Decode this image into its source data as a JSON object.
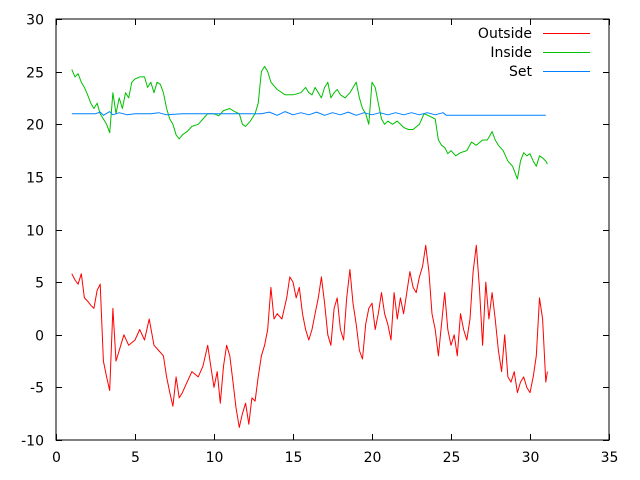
{
  "chart_data": {
    "type": "line",
    "title": "",
    "xlabel": "",
    "ylabel": "",
    "xlim": [
      0,
      35
    ],
    "ylim": [
      -10,
      30
    ],
    "x_ticks": [
      0,
      5,
      10,
      15,
      20,
      25,
      30,
      35
    ],
    "y_ticks": [
      -10,
      -5,
      0,
      5,
      10,
      15,
      20,
      25,
      30
    ],
    "grid": false,
    "legend_position": "top-right",
    "series": [
      {
        "name": "Outside",
        "color": "#ff0000",
        "points": [
          [
            1.0,
            5.8
          ],
          [
            1.2,
            5.2
          ],
          [
            1.4,
            4.8
          ],
          [
            1.6,
            5.8
          ],
          [
            1.8,
            3.5
          ],
          [
            2.0,
            3.2
          ],
          [
            2.2,
            2.8
          ],
          [
            2.4,
            2.5
          ],
          [
            2.6,
            4.2
          ],
          [
            2.8,
            4.8
          ],
          [
            3.0,
            -2.5
          ],
          [
            3.2,
            -4.0
          ],
          [
            3.4,
            -5.3
          ],
          [
            3.6,
            2.5
          ],
          [
            3.8,
            -2.5
          ],
          [
            4.0,
            -1.5
          ],
          [
            4.3,
            0.0
          ],
          [
            4.6,
            -1.0
          ],
          [
            5.0,
            -0.5
          ],
          [
            5.3,
            0.5
          ],
          [
            5.6,
            -0.5
          ],
          [
            5.9,
            1.5
          ],
          [
            6.2,
            -1.0
          ],
          [
            6.5,
            -1.5
          ],
          [
            6.8,
            -2.0
          ],
          [
            7.0,
            -4.0
          ],
          [
            7.2,
            -5.5
          ],
          [
            7.4,
            -6.8
          ],
          [
            7.6,
            -4.0
          ],
          [
            7.8,
            -6.0
          ],
          [
            8.0,
            -5.5
          ],
          [
            8.3,
            -4.5
          ],
          [
            8.6,
            -3.5
          ],
          [
            9.0,
            -4.0
          ],
          [
            9.3,
            -3.0
          ],
          [
            9.6,
            -1.0
          ],
          [
            9.8,
            -3.0
          ],
          [
            10.0,
            -5.0
          ],
          [
            10.2,
            -3.5
          ],
          [
            10.4,
            -6.5
          ],
          [
            10.6,
            -3.0
          ],
          [
            10.8,
            -1.0
          ],
          [
            11.0,
            -2.0
          ],
          [
            11.2,
            -4.5
          ],
          [
            11.4,
            -7.0
          ],
          [
            11.6,
            -8.8
          ],
          [
            11.8,
            -7.5
          ],
          [
            12.0,
            -6.5
          ],
          [
            12.2,
            -8.5
          ],
          [
            12.4,
            -6.0
          ],
          [
            12.6,
            -6.3
          ],
          [
            12.8,
            -4.0
          ],
          [
            13.0,
            -2.0
          ],
          [
            13.2,
            -1.0
          ],
          [
            13.4,
            0.5
          ],
          [
            13.6,
            4.5
          ],
          [
            13.8,
            1.5
          ],
          [
            14.0,
            2.0
          ],
          [
            14.3,
            1.5
          ],
          [
            14.6,
            3.5
          ],
          [
            14.8,
            5.5
          ],
          [
            15.0,
            5.0
          ],
          [
            15.2,
            3.5
          ],
          [
            15.4,
            4.5
          ],
          [
            15.6,
            2.0
          ],
          [
            15.8,
            0.5
          ],
          [
            16.0,
            -0.5
          ],
          [
            16.2,
            0.5
          ],
          [
            16.4,
            2.0
          ],
          [
            16.6,
            3.5
          ],
          [
            16.8,
            5.5
          ],
          [
            17.0,
            3.0
          ],
          [
            17.2,
            0.0
          ],
          [
            17.4,
            -1.0
          ],
          [
            17.6,
            2.5
          ],
          [
            17.8,
            3.5
          ],
          [
            18.0,
            0.5
          ],
          [
            18.2,
            -0.5
          ],
          [
            18.4,
            3.5
          ],
          [
            18.6,
            6.2
          ],
          [
            18.8,
            3.0
          ],
          [
            19.0,
            1.0
          ],
          [
            19.2,
            -1.5
          ],
          [
            19.4,
            -2.3
          ],
          [
            19.6,
            1.0
          ],
          [
            19.8,
            2.5
          ],
          [
            20.0,
            3.0
          ],
          [
            20.2,
            0.5
          ],
          [
            20.4,
            2.0
          ],
          [
            20.6,
            4.0
          ],
          [
            20.8,
            2.0
          ],
          [
            21.0,
            1.0
          ],
          [
            21.2,
            -0.5
          ],
          [
            21.4,
            4.0
          ],
          [
            21.6,
            1.5
          ],
          [
            21.8,
            3.5
          ],
          [
            22.0,
            2.0
          ],
          [
            22.2,
            4.0
          ],
          [
            22.4,
            6.0
          ],
          [
            22.6,
            4.5
          ],
          [
            22.8,
            4.0
          ],
          [
            23.0,
            5.5
          ],
          [
            23.2,
            6.5
          ],
          [
            23.4,
            8.5
          ],
          [
            23.6,
            6.0
          ],
          [
            23.8,
            2.0
          ],
          [
            24.0,
            0.5
          ],
          [
            24.2,
            -2.0
          ],
          [
            24.4,
            1.0
          ],
          [
            24.6,
            4.0
          ],
          [
            24.8,
            0.5
          ],
          [
            25.0,
            -1.0
          ],
          [
            25.2,
            0.0
          ],
          [
            25.4,
            -2.0
          ],
          [
            25.6,
            2.0
          ],
          [
            25.8,
            0.5
          ],
          [
            26.0,
            -0.5
          ],
          [
            26.2,
            1.5
          ],
          [
            26.4,
            6.0
          ],
          [
            26.6,
            8.5
          ],
          [
            26.8,
            4.5
          ],
          [
            27.0,
            -1.0
          ],
          [
            27.2,
            5.0
          ],
          [
            27.4,
            1.5
          ],
          [
            27.6,
            4.0
          ],
          [
            27.8,
            1.5
          ],
          [
            28.0,
            -1.5
          ],
          [
            28.2,
            -3.5
          ],
          [
            28.4,
            0.0
          ],
          [
            28.6,
            -4.0
          ],
          [
            28.8,
            -4.5
          ],
          [
            29.0,
            -3.5
          ],
          [
            29.2,
            -5.5
          ],
          [
            29.4,
            -4.5
          ],
          [
            29.6,
            -4.0
          ],
          [
            29.8,
            -5.0
          ],
          [
            30.0,
            -5.5
          ],
          [
            30.2,
            -4.0
          ],
          [
            30.4,
            -2.0
          ],
          [
            30.6,
            3.5
          ],
          [
            30.8,
            1.5
          ],
          [
            31.0,
            -4.5
          ],
          [
            31.1,
            -3.5
          ]
        ]
      },
      {
        "name": "Inside",
        "color": "#00c000",
        "points": [
          [
            1.0,
            25.2
          ],
          [
            1.2,
            24.5
          ],
          [
            1.4,
            24.8
          ],
          [
            1.6,
            24.0
          ],
          [
            1.8,
            23.5
          ],
          [
            2.0,
            22.8
          ],
          [
            2.2,
            22.0
          ],
          [
            2.4,
            21.5
          ],
          [
            2.6,
            22.0
          ],
          [
            2.8,
            21.0
          ],
          [
            3.0,
            20.5
          ],
          [
            3.2,
            20.0
          ],
          [
            3.4,
            19.2
          ],
          [
            3.6,
            23.0
          ],
          [
            3.8,
            21.0
          ],
          [
            4.0,
            22.5
          ],
          [
            4.2,
            21.5
          ],
          [
            4.4,
            23.0
          ],
          [
            4.6,
            22.5
          ],
          [
            4.8,
            24.0
          ],
          [
            5.0,
            24.3
          ],
          [
            5.3,
            24.5
          ],
          [
            5.6,
            24.5
          ],
          [
            5.8,
            23.5
          ],
          [
            6.0,
            24.0
          ],
          [
            6.2,
            23.0
          ],
          [
            6.4,
            24.0
          ],
          [
            6.6,
            23.8
          ],
          [
            6.8,
            23.0
          ],
          [
            7.0,
            21.5
          ],
          [
            7.2,
            20.5
          ],
          [
            7.4,
            20.0
          ],
          [
            7.6,
            19.0
          ],
          [
            7.8,
            18.6
          ],
          [
            8.0,
            19.0
          ],
          [
            8.3,
            19.3
          ],
          [
            8.6,
            19.8
          ],
          [
            9.0,
            20.0
          ],
          [
            9.3,
            20.5
          ],
          [
            9.6,
            21.0
          ],
          [
            10.0,
            21.0
          ],
          [
            10.3,
            20.8
          ],
          [
            10.6,
            21.3
          ],
          [
            11.0,
            21.5
          ],
          [
            11.3,
            21.2
          ],
          [
            11.6,
            21.0
          ],
          [
            11.8,
            20.0
          ],
          [
            12.0,
            19.8
          ],
          [
            12.3,
            20.3
          ],
          [
            12.6,
            21.0
          ],
          [
            12.8,
            22.0
          ],
          [
            13.0,
            25.0
          ],
          [
            13.2,
            25.5
          ],
          [
            13.4,
            25.0
          ],
          [
            13.6,
            24.0
          ],
          [
            14.0,
            23.3
          ],
          [
            14.5,
            22.8
          ],
          [
            15.0,
            22.8
          ],
          [
            15.5,
            23.0
          ],
          [
            15.8,
            23.5
          ],
          [
            16.0,
            23.0
          ],
          [
            16.2,
            22.8
          ],
          [
            16.4,
            23.5
          ],
          [
            16.6,
            23.0
          ],
          [
            16.8,
            22.5
          ],
          [
            17.0,
            23.5
          ],
          [
            17.2,
            24.0
          ],
          [
            17.4,
            22.5
          ],
          [
            17.6,
            23.0
          ],
          [
            17.8,
            23.3
          ],
          [
            18.0,
            22.8
          ],
          [
            18.3,
            22.5
          ],
          [
            18.6,
            23.0
          ],
          [
            19.0,
            24.0
          ],
          [
            19.2,
            22.5
          ],
          [
            19.4,
            21.5
          ],
          [
            19.6,
            21.0
          ],
          [
            19.8,
            20.0
          ],
          [
            20.0,
            24.0
          ],
          [
            20.2,
            23.5
          ],
          [
            20.4,
            22.0
          ],
          [
            20.6,
            20.5
          ],
          [
            20.8,
            20.0
          ],
          [
            21.0,
            20.3
          ],
          [
            21.3,
            20.0
          ],
          [
            21.6,
            20.3
          ],
          [
            22.0,
            19.7
          ],
          [
            22.3,
            19.5
          ],
          [
            22.6,
            19.5
          ],
          [
            23.0,
            20.0
          ],
          [
            23.3,
            21.0
          ],
          [
            23.6,
            20.8
          ],
          [
            24.0,
            20.5
          ],
          [
            24.2,
            18.5
          ],
          [
            24.4,
            18.0
          ],
          [
            24.6,
            17.8
          ],
          [
            24.8,
            17.2
          ],
          [
            25.0,
            17.5
          ],
          [
            25.3,
            17.0
          ],
          [
            25.6,
            17.3
          ],
          [
            26.0,
            17.5
          ],
          [
            26.3,
            18.3
          ],
          [
            26.6,
            18.0
          ],
          [
            27.0,
            18.5
          ],
          [
            27.3,
            18.5
          ],
          [
            27.6,
            19.3
          ],
          [
            27.8,
            18.5
          ],
          [
            28.0,
            18.0
          ],
          [
            28.3,
            17.5
          ],
          [
            28.6,
            16.5
          ],
          [
            28.9,
            16.0
          ],
          [
            29.2,
            14.8
          ],
          [
            29.4,
            16.5
          ],
          [
            29.6,
            17.3
          ],
          [
            29.8,
            17.0
          ],
          [
            30.0,
            17.2
          ],
          [
            30.2,
            16.5
          ],
          [
            30.4,
            16.0
          ],
          [
            30.6,
            17.0
          ],
          [
            30.8,
            16.8
          ],
          [
            31.0,
            16.5
          ],
          [
            31.1,
            16.2
          ]
        ]
      },
      {
        "name": "Set",
        "color": "#0080ff",
        "points": [
          [
            1.0,
            21.0
          ],
          [
            2.5,
            21.0
          ],
          [
            2.8,
            21.15
          ],
          [
            3.0,
            20.85
          ],
          [
            3.4,
            21.2
          ],
          [
            3.6,
            20.9
          ],
          [
            4.0,
            21.1
          ],
          [
            4.5,
            20.9
          ],
          [
            5.0,
            21.0
          ],
          [
            6.0,
            21.0
          ],
          [
            6.5,
            21.1
          ],
          [
            7.0,
            20.9
          ],
          [
            8.0,
            21.0
          ],
          [
            9.0,
            21.0
          ],
          [
            10.0,
            21.0
          ],
          [
            11.0,
            21.0
          ],
          [
            12.0,
            21.0
          ],
          [
            13.0,
            21.0
          ],
          [
            13.5,
            21.15
          ],
          [
            14.0,
            20.85
          ],
          [
            14.5,
            21.2
          ],
          [
            15.0,
            20.9
          ],
          [
            15.5,
            21.1
          ],
          [
            16.0,
            20.9
          ],
          [
            16.5,
            21.15
          ],
          [
            17.0,
            20.85
          ],
          [
            17.5,
            21.1
          ],
          [
            18.0,
            20.9
          ],
          [
            18.5,
            21.15
          ],
          [
            19.0,
            20.85
          ],
          [
            19.5,
            21.1
          ],
          [
            20.0,
            20.9
          ],
          [
            20.5,
            21.1
          ],
          [
            21.0,
            20.9
          ],
          [
            21.5,
            21.1
          ],
          [
            22.0,
            20.9
          ],
          [
            22.5,
            21.1
          ],
          [
            23.0,
            20.9
          ],
          [
            23.5,
            21.1
          ],
          [
            24.0,
            20.9
          ],
          [
            24.5,
            21.1
          ],
          [
            24.7,
            20.85
          ],
          [
            25.0,
            20.85
          ],
          [
            26.0,
            20.85
          ],
          [
            28.0,
            20.85
          ],
          [
            31.0,
            20.85
          ]
        ]
      }
    ]
  }
}
